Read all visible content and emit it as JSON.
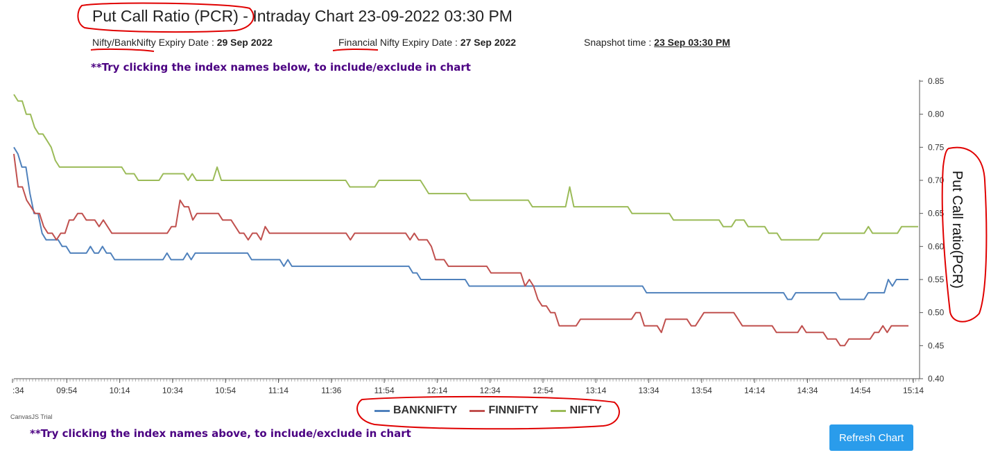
{
  "header": {
    "title": "Put Call Ratio (PCR) - Intraday Chart 23-09-2022 03:30 PM",
    "nifty_expiry_label": "Nifty/BankNifty Expiry Date : ",
    "nifty_expiry_value": "29 Sep 2022",
    "fin_expiry_label": "Financial Nifty Expiry Date : ",
    "fin_expiry_value": "27 Sep 2022",
    "snapshot_label": "Snapshot time : ",
    "snapshot_value": "23 Sep 03:30 PM"
  },
  "hints": {
    "top": "**Try clicking the index names below, to include/exclude in chart",
    "bottom": "**Try clicking the index names above, to include/exclude in chart"
  },
  "credit": "CanvasJS Trial",
  "refresh_label": "Refresh Chart",
  "colors": {
    "banknifty": "#4f81bc",
    "finnifty": "#c0504e",
    "nifty": "#9bbb58",
    "annotation": "#e00000"
  },
  "chart_data": {
    "type": "line",
    "ylabel": "Put Call ratio(PCR)",
    "ylim": [
      0.4,
      0.85
    ],
    "y_ticks": [
      "0.40",
      "0.45",
      "0.50",
      "0.55",
      "0.60",
      "0.65",
      "0.70",
      "0.75",
      "0.80",
      "0.85"
    ],
    "x_ticks": [
      ":34",
      "09:54",
      "10:14",
      "10:34",
      "10:54",
      "11:14",
      "11:36",
      "11:54",
      "12:14",
      "12:34",
      "12:54",
      "13:14",
      "13:34",
      "13:54",
      "14:14",
      "14:34",
      "14:54",
      "15:14"
    ],
    "y_axis_position": "right",
    "legend_position": "bottom",
    "series": [
      {
        "name": "BANKNIFTY",
        "values": [
          0.75,
          0.74,
          0.72,
          0.72,
          0.68,
          0.65,
          0.65,
          0.62,
          0.61,
          0.61,
          0.61,
          0.61,
          0.6,
          0.6,
          0.59,
          0.59,
          0.59,
          0.59,
          0.59,
          0.6,
          0.59,
          0.59,
          0.6,
          0.59,
          0.59,
          0.58,
          0.58,
          0.58,
          0.58,
          0.58,
          0.58,
          0.58,
          0.58,
          0.58,
          0.58,
          0.58,
          0.58,
          0.58,
          0.59,
          0.58,
          0.58,
          0.58,
          0.58,
          0.59,
          0.58,
          0.59,
          0.59,
          0.59,
          0.59,
          0.59,
          0.59,
          0.59,
          0.59,
          0.59,
          0.59,
          0.59,
          0.59,
          0.59,
          0.59,
          0.58,
          0.58,
          0.58,
          0.58,
          0.58,
          0.58,
          0.58,
          0.58,
          0.57,
          0.58,
          0.57,
          0.57,
          0.57,
          0.57,
          0.57,
          0.57,
          0.57,
          0.57,
          0.57,
          0.57,
          0.57,
          0.57,
          0.57,
          0.57,
          0.57,
          0.57,
          0.57,
          0.57,
          0.57,
          0.57,
          0.57,
          0.57,
          0.57,
          0.57,
          0.57,
          0.57,
          0.57,
          0.57,
          0.57,
          0.57,
          0.56,
          0.56,
          0.55,
          0.55,
          0.55,
          0.55,
          0.55,
          0.55,
          0.55,
          0.55,
          0.55,
          0.55,
          0.55,
          0.55,
          0.54,
          0.54,
          0.54,
          0.54,
          0.54,
          0.54,
          0.54,
          0.54,
          0.54,
          0.54,
          0.54,
          0.54,
          0.54,
          0.54,
          0.54,
          0.54,
          0.54,
          0.54,
          0.54,
          0.54,
          0.54,
          0.54,
          0.54,
          0.54,
          0.54,
          0.54,
          0.54,
          0.54,
          0.54,
          0.54,
          0.54,
          0.54,
          0.54,
          0.54,
          0.54,
          0.54,
          0.54,
          0.54,
          0.54,
          0.54,
          0.54,
          0.54,
          0.54,
          0.54,
          0.53,
          0.53,
          0.53,
          0.53,
          0.53,
          0.53,
          0.53,
          0.53,
          0.53,
          0.53,
          0.53,
          0.53,
          0.53,
          0.53,
          0.53,
          0.53,
          0.53,
          0.53,
          0.53,
          0.53,
          0.53,
          0.53,
          0.53,
          0.53,
          0.53,
          0.53,
          0.53,
          0.53,
          0.53,
          0.53,
          0.53,
          0.53,
          0.53,
          0.53,
          0.53,
          0.52,
          0.52,
          0.53,
          0.53,
          0.53,
          0.53,
          0.53,
          0.53,
          0.53,
          0.53,
          0.53,
          0.53,
          0.53,
          0.52,
          0.52,
          0.52,
          0.52,
          0.52,
          0.52,
          0.52,
          0.53,
          0.53,
          0.53,
          0.53,
          0.53,
          0.55,
          0.54,
          0.55,
          0.55,
          0.55,
          0.55
        ]
      },
      {
        "name": "FINNIFTY",
        "values": [
          0.74,
          0.69,
          0.69,
          0.67,
          0.66,
          0.65,
          0.65,
          0.63,
          0.62,
          0.62,
          0.61,
          0.62,
          0.62,
          0.64,
          0.64,
          0.65,
          0.65,
          0.64,
          0.64,
          0.64,
          0.63,
          0.64,
          0.63,
          0.62,
          0.62,
          0.62,
          0.62,
          0.62,
          0.62,
          0.62,
          0.62,
          0.62,
          0.62,
          0.62,
          0.62,
          0.62,
          0.62,
          0.63,
          0.63,
          0.67,
          0.66,
          0.66,
          0.64,
          0.65,
          0.65,
          0.65,
          0.65,
          0.65,
          0.65,
          0.64,
          0.64,
          0.64,
          0.63,
          0.62,
          0.62,
          0.61,
          0.62,
          0.62,
          0.61,
          0.63,
          0.62,
          0.62,
          0.62,
          0.62,
          0.62,
          0.62,
          0.62,
          0.62,
          0.62,
          0.62,
          0.62,
          0.62,
          0.62,
          0.62,
          0.62,
          0.62,
          0.62,
          0.62,
          0.62,
          0.61,
          0.62,
          0.62,
          0.62,
          0.62,
          0.62,
          0.62,
          0.62,
          0.62,
          0.62,
          0.62,
          0.62,
          0.62,
          0.62,
          0.61,
          0.62,
          0.61,
          0.61,
          0.61,
          0.6,
          0.58,
          0.58,
          0.58,
          0.57,
          0.57,
          0.57,
          0.57,
          0.57,
          0.57,
          0.57,
          0.57,
          0.57,
          0.57,
          0.56,
          0.56,
          0.56,
          0.56,
          0.56,
          0.56,
          0.56,
          0.56,
          0.54,
          0.55,
          0.54,
          0.52,
          0.51,
          0.51,
          0.5,
          0.5,
          0.48,
          0.48,
          0.48,
          0.48,
          0.48,
          0.49,
          0.49,
          0.49,
          0.49,
          0.49,
          0.49,
          0.49,
          0.49,
          0.49,
          0.49,
          0.49,
          0.49,
          0.49,
          0.5,
          0.5,
          0.48,
          0.48,
          0.48,
          0.48,
          0.47,
          0.49,
          0.49,
          0.49,
          0.49,
          0.49,
          0.49,
          0.48,
          0.48,
          0.49,
          0.5,
          0.5,
          0.5,
          0.5,
          0.5,
          0.5,
          0.5,
          0.5,
          0.49,
          0.48,
          0.48,
          0.48,
          0.48,
          0.48,
          0.48,
          0.48,
          0.48,
          0.47,
          0.47,
          0.47,
          0.47,
          0.47,
          0.47,
          0.48,
          0.47,
          0.47,
          0.47,
          0.47,
          0.47,
          0.46,
          0.46,
          0.46,
          0.45,
          0.45,
          0.46,
          0.46,
          0.46,
          0.46,
          0.46,
          0.46,
          0.47,
          0.47,
          0.48,
          0.47,
          0.48,
          0.48,
          0.48,
          0.48,
          0.48
        ]
      },
      {
        "name": "NIFTY",
        "values": [
          0.83,
          0.82,
          0.82,
          0.8,
          0.8,
          0.78,
          0.77,
          0.77,
          0.76,
          0.75,
          0.73,
          0.72,
          0.72,
          0.72,
          0.72,
          0.72,
          0.72,
          0.72,
          0.72,
          0.72,
          0.72,
          0.72,
          0.72,
          0.72,
          0.72,
          0.72,
          0.72,
          0.71,
          0.71,
          0.71,
          0.7,
          0.7,
          0.7,
          0.7,
          0.7,
          0.7,
          0.71,
          0.71,
          0.71,
          0.71,
          0.71,
          0.71,
          0.7,
          0.71,
          0.7,
          0.7,
          0.7,
          0.7,
          0.7,
          0.72,
          0.7,
          0.7,
          0.7,
          0.7,
          0.7,
          0.7,
          0.7,
          0.7,
          0.7,
          0.7,
          0.7,
          0.7,
          0.7,
          0.7,
          0.7,
          0.7,
          0.7,
          0.7,
          0.7,
          0.7,
          0.7,
          0.7,
          0.7,
          0.7,
          0.7,
          0.7,
          0.7,
          0.7,
          0.7,
          0.7,
          0.7,
          0.69,
          0.69,
          0.69,
          0.69,
          0.69,
          0.69,
          0.69,
          0.7,
          0.7,
          0.7,
          0.7,
          0.7,
          0.7,
          0.7,
          0.7,
          0.7,
          0.7,
          0.7,
          0.69,
          0.68,
          0.68,
          0.68,
          0.68,
          0.68,
          0.68,
          0.68,
          0.68,
          0.68,
          0.68,
          0.67,
          0.67,
          0.67,
          0.67,
          0.67,
          0.67,
          0.67,
          0.67,
          0.67,
          0.67,
          0.67,
          0.67,
          0.67,
          0.67,
          0.67,
          0.66,
          0.66,
          0.66,
          0.66,
          0.66,
          0.66,
          0.66,
          0.66,
          0.66,
          0.69,
          0.66,
          0.66,
          0.66,
          0.66,
          0.66,
          0.66,
          0.66,
          0.66,
          0.66,
          0.66,
          0.66,
          0.66,
          0.66,
          0.66,
          0.65,
          0.65,
          0.65,
          0.65,
          0.65,
          0.65,
          0.65,
          0.65,
          0.65,
          0.65,
          0.64,
          0.64,
          0.64,
          0.64,
          0.64,
          0.64,
          0.64,
          0.64,
          0.64,
          0.64,
          0.64,
          0.64,
          0.63,
          0.63,
          0.63,
          0.64,
          0.64,
          0.64,
          0.63,
          0.63,
          0.63,
          0.63,
          0.63,
          0.62,
          0.62,
          0.62,
          0.61,
          0.61,
          0.61,
          0.61,
          0.61,
          0.61,
          0.61,
          0.61,
          0.61,
          0.61,
          0.62,
          0.62,
          0.62,
          0.62,
          0.62,
          0.62,
          0.62,
          0.62,
          0.62,
          0.62,
          0.62,
          0.63,
          0.62,
          0.62,
          0.62,
          0.62,
          0.62,
          0.62,
          0.62,
          0.63,
          0.63,
          0.63,
          0.63,
          0.63
        ]
      }
    ]
  }
}
